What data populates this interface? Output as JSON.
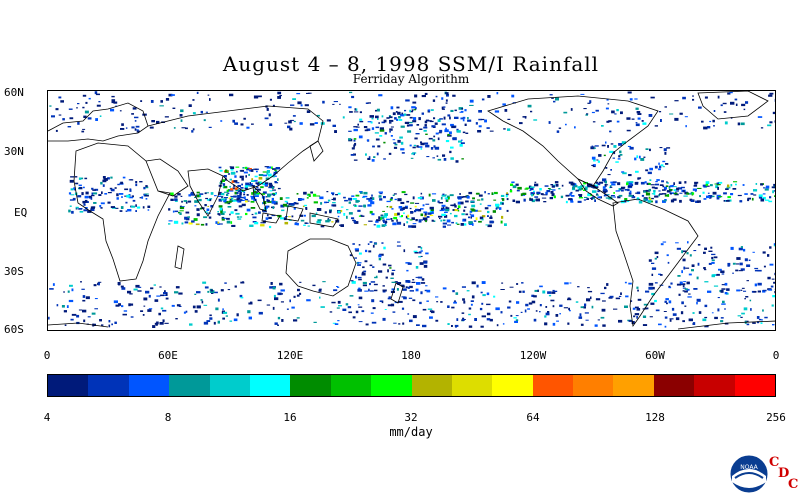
{
  "title": "August 4 – 8, 1998 SSM/I Rainfall",
  "subtitle": "Ferriday Algorithm",
  "lat_labels": [
    "60N",
    "30N",
    "EQ",
    "30S",
    "60S"
  ],
  "lon_labels": [
    "0",
    "60E",
    "120E",
    "180",
    "120W",
    "60W",
    "0"
  ],
  "colorbar": {
    "colors": [
      "#001a7a",
      "#0033b8",
      "#0055ff",
      "#009999",
      "#00cccc",
      "#00ffff",
      "#008c00",
      "#00c000",
      "#00ff00",
      "#b3b300",
      "#dddd00",
      "#ffff00",
      "#ff5500",
      "#ff7f00",
      "#ffa000",
      "#8b0000",
      "#c80000",
      "#ff0000"
    ],
    "tick_labels": [
      "4",
      "8",
      "16",
      "32",
      "64",
      "128",
      "256"
    ],
    "units": "mm/day"
  },
  "logo": {
    "noaa": "NOAA",
    "cdc": [
      "C",
      "D",
      "C"
    ]
  }
}
